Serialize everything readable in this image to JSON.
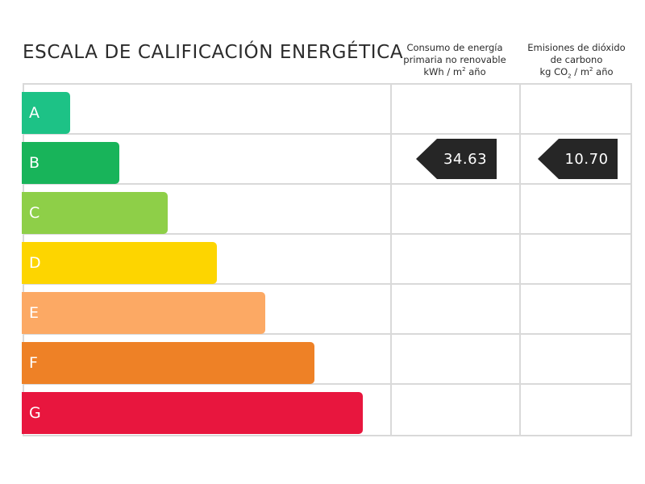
{
  "title": "ESCALA DE CALIFICACIÓN ENERGÉTICA",
  "columns": {
    "consumo": {
      "line1": "Consumo de energía",
      "line2": "primaria no renovable",
      "unit_pre": "kWh / m",
      "unit_sup": "2",
      "unit_post": " año"
    },
    "emisiones": {
      "line1": "Emisiones de dióxido",
      "line2": "de carbono",
      "unit_pre": "kg CO",
      "unit_sub": "2",
      "unit_mid": " / m",
      "unit_sup": "2",
      "unit_post": " año"
    }
  },
  "ratings": [
    {
      "letter": "A",
      "color": "#1dc286"
    },
    {
      "letter": "B",
      "color": "#18b45a"
    },
    {
      "letter": "C",
      "color": "#8ecf48"
    },
    {
      "letter": "D",
      "color": "#fdd500"
    },
    {
      "letter": "E",
      "color": "#fca964"
    },
    {
      "letter": "F",
      "color": "#ee8126"
    },
    {
      "letter": "G",
      "color": "#e8163e"
    }
  ],
  "values": {
    "rating": "B",
    "consumo": "34.63",
    "emisiones": "10.70"
  }
}
